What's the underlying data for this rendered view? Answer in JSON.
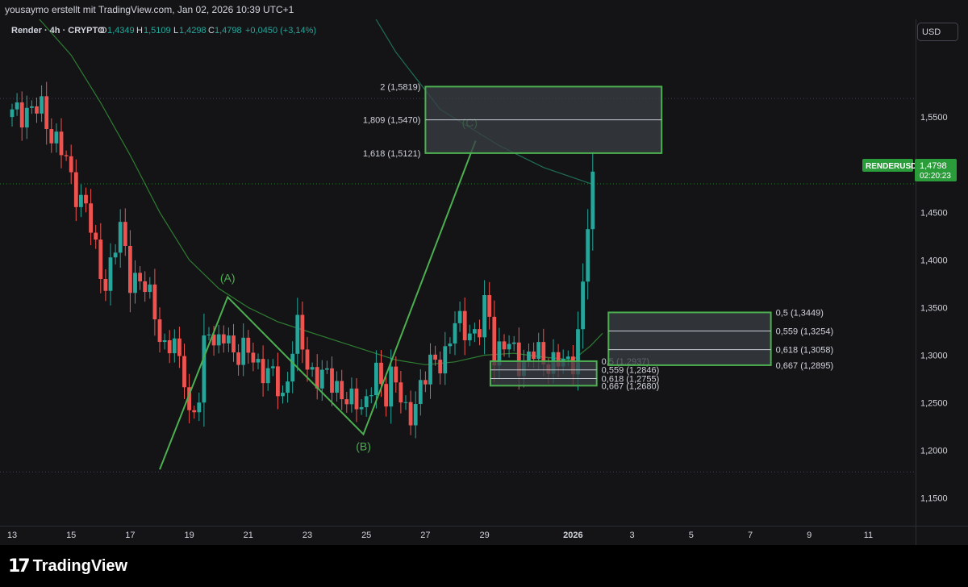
{
  "header": {
    "credit": "yousaymo erstellt mit TradingView.com, Jan 02, 2026 10:39 UTC+1"
  },
  "legend": {
    "symbol": "Render · 4h · CRYPTO",
    "open_label": "O",
    "open": "1,4349",
    "high_label": "H",
    "high": "1,5109",
    "low_label": "L",
    "low": "1,4298",
    "close_label": "C",
    "close": "1,4798",
    "change": "+0,0450 (+3,14%)"
  },
  "currency_button": "USD",
  "price_tag": {
    "symbol": "RENDERUSD",
    "price": "1,4798",
    "countdown": "02:20:23"
  },
  "footer": {
    "brand": "TradingView"
  },
  "colors": {
    "up": "#26a69a",
    "down": "#ef5350",
    "wave": "#4caf50",
    "ma": "#2e7d32"
  },
  "chart_data": {
    "type": "candlestick",
    "timeframe": "4h",
    "y_ticks": [
      1.55,
      1.5,
      1.45,
      1.4,
      1.35,
      1.3,
      1.25,
      1.2,
      1.15
    ],
    "y_tick_labels": [
      "1,5500",
      "1,5000",
      "1,4500",
      "1,4000",
      "1,3500",
      "1,3000",
      "1,2500",
      "1,2000",
      "1,1500"
    ],
    "ylim": [
      1.121,
      1.6525
    ],
    "x_ticks": [
      {
        "label": "13",
        "day": 0
      },
      {
        "label": "15",
        "day": 2
      },
      {
        "label": "17",
        "day": 4
      },
      {
        "label": "19",
        "day": 6
      },
      {
        "label": "21",
        "day": 8
      },
      {
        "label": "23",
        "day": 10
      },
      {
        "label": "25",
        "day": 12
      },
      {
        "label": "27",
        "day": 14
      },
      {
        "label": "29",
        "day": 16
      },
      {
        "label": "2026",
        "day": 19
      },
      {
        "label": "3",
        "day": 21
      },
      {
        "label": "5",
        "day": 23
      },
      {
        "label": "7",
        "day": 25
      },
      {
        "label": "9",
        "day": 27
      },
      {
        "label": "11",
        "day": 29
      }
    ],
    "last_price": 1.4798,
    "close_path": [
      [
        0.0,
        1.55
      ],
      [
        0.5,
        1.56
      ],
      [
        1.0,
        1.555
      ],
      [
        1.6,
        1.52
      ],
      [
        2.0,
        1.485
      ],
      [
        2.5,
        1.455
      ],
      [
        2.8,
        1.41
      ],
      [
        3.2,
        1.375
      ],
      [
        3.7,
        1.435
      ],
      [
        4.0,
        1.385
      ],
      [
        4.4,
        1.37
      ],
      [
        4.8,
        1.36
      ],
      [
        5.1,
        1.3
      ],
      [
        5.5,
        1.31
      ],
      [
        5.8,
        1.295
      ],
      [
        6.0,
        1.23
      ],
      [
        6.3,
        1.24
      ],
      [
        6.6,
        1.35
      ],
      [
        6.9,
        1.3
      ],
      [
        7.2,
        1.32
      ],
      [
        7.6,
        1.305
      ],
      [
        8.0,
        1.3
      ],
      [
        8.6,
        1.285
      ],
      [
        9.2,
        1.255
      ],
      [
        9.6,
        1.33
      ],
      [
        10.0,
        1.29
      ],
      [
        10.5,
        1.275
      ],
      [
        11.0,
        1.27
      ],
      [
        11.5,
        1.245
      ],
      [
        12.0,
        1.255
      ],
      [
        12.3,
        1.282
      ],
      [
        12.6,
        1.25
      ],
      [
        12.9,
        1.295
      ],
      [
        13.2,
        1.245
      ],
      [
        13.4,
        1.225
      ],
      [
        13.8,
        1.27
      ],
      [
        14.3,
        1.29
      ],
      [
        14.6,
        1.3
      ],
      [
        15.0,
        1.33
      ],
      [
        15.4,
        1.33
      ],
      [
        15.8,
        1.32
      ],
      [
        16.1,
        1.36
      ],
      [
        16.3,
        1.305
      ],
      [
        16.7,
        1.31
      ],
      [
        17.2,
        1.295
      ],
      [
        17.7,
        1.3
      ],
      [
        18.2,
        1.295
      ],
      [
        18.6,
        1.289
      ],
      [
        18.95,
        1.292
      ],
      [
        19.2,
        1.33
      ],
      [
        19.4,
        1.39
      ],
      [
        19.6,
        1.48
      ],
      [
        19.75,
        1.4798
      ]
    ],
    "moving_average": [
      [
        0.0,
        1.685
      ],
      [
        1.0,
        1.65
      ],
      [
        2.0,
        1.615
      ],
      [
        3.0,
        1.565
      ],
      [
        4.0,
        1.51
      ],
      [
        5.0,
        1.45
      ],
      [
        6.0,
        1.4
      ],
      [
        7.0,
        1.37
      ],
      [
        8.0,
        1.35
      ],
      [
        9.0,
        1.335
      ],
      [
        10.0,
        1.325
      ],
      [
        11.0,
        1.315
      ],
      [
        12.0,
        1.305
      ],
      [
        13.0,
        1.295
      ],
      [
        14.0,
        1.29
      ],
      [
        15.0,
        1.293
      ],
      [
        16.0,
        1.3
      ],
      [
        17.0,
        1.302
      ],
      [
        18.0,
        1.298
      ],
      [
        19.0,
        1.295
      ],
      [
        19.6,
        1.31
      ],
      [
        20.0,
        1.323
      ]
    ],
    "long_ma": [
      [
        11.5,
        1.695
      ],
      [
        13.0,
        1.618
      ],
      [
        14.5,
        1.558
      ],
      [
        16.5,
        1.52
      ],
      [
        18.0,
        1.497
      ],
      [
        19.6,
        1.48
      ]
    ],
    "wave_lines": [
      [
        5.0,
        1.18
      ],
      [
        7.3,
        1.361
      ],
      [
        11.9,
        1.217
      ],
      [
        15.7,
        1.525
      ]
    ],
    "wave_labels": [
      {
        "text": "(A)",
        "day": 7.3,
        "price": 1.377
      },
      {
        "text": "(B)",
        "day": 11.9,
        "price": 1.2
      },
      {
        "text": "(C)",
        "day": 15.5,
        "price": 1.54
      }
    ],
    "reference_lines": [
      1.5695,
      1.4798,
      1.1775
    ],
    "fib_zones": [
      {
        "day_start": 14.0,
        "day_end": 22.0,
        "levels": [
          {
            "ratio": "2",
            "price": "1,5819",
            "value": 1.5819
          },
          {
            "ratio": "1,809",
            "price": "1,5470",
            "value": 1.547
          },
          {
            "ratio": "1,618",
            "price": "1,5121",
            "value": 1.5121
          }
        ],
        "label_side": "left"
      },
      {
        "day_start": 16.2,
        "day_end": 19.8,
        "levels": [
          {
            "ratio": "0,5",
            "price": "1,2937",
            "value": 1.2937
          },
          {
            "ratio": "0,559",
            "price": "1,2846",
            "value": 1.2846
          },
          {
            "ratio": "0,618",
            "price": "1,2755",
            "value": 1.2755
          },
          {
            "ratio": "0,667",
            "price": "1,2680",
            "value": 1.268
          }
        ],
        "label_side": "right"
      },
      {
        "day_start": 20.2,
        "day_end": 25.7,
        "levels": [
          {
            "ratio": "0,5",
            "price": "1,3449",
            "value": 1.3449
          },
          {
            "ratio": "0,559",
            "price": "1,3254",
            "value": 1.3254
          },
          {
            "ratio": "0,618",
            "price": "1,3058",
            "value": 1.3058
          },
          {
            "ratio": "0,667",
            "price": "1,2895",
            "value": 1.2895
          }
        ],
        "label_side": "right"
      }
    ]
  }
}
